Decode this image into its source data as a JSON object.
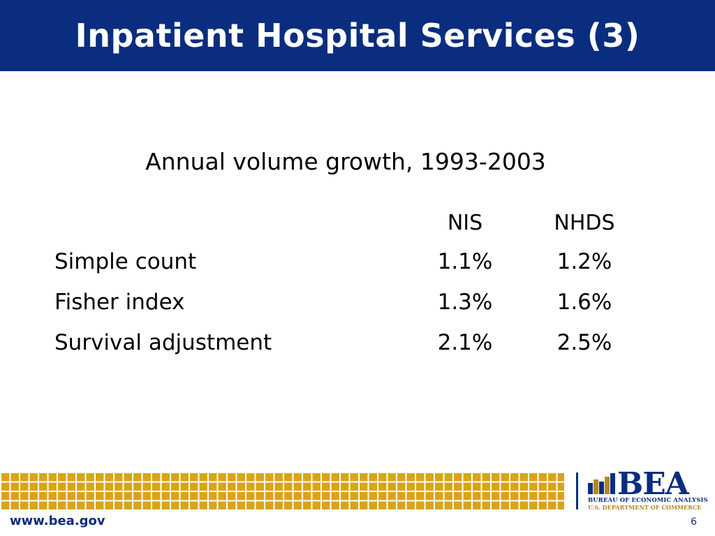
{
  "slide": {
    "title": "Inpatient Hospital Services (3)",
    "subtitle": "Annual volume growth, 1993-2003",
    "page_number": "6"
  },
  "table": {
    "columns": [
      "NIS",
      "NHDS"
    ],
    "rows": [
      {
        "label": "Simple count",
        "values": [
          "1.1%",
          "1.2%"
        ]
      },
      {
        "label": "Fisher index",
        "values": [
          "1.3%",
          "1.6%"
        ]
      },
      {
        "label": "Survival adjustment",
        "values": [
          "2.1%",
          "2.5%"
        ]
      }
    ]
  },
  "footer": {
    "url": "www.bea.gov",
    "logo_text": "BEA",
    "logo_line1": "BUREAU OF ECONOMIC ANALYSIS",
    "logo_line2": "U.S. DEPARTMENT OF COMMERCE",
    "logo_icon": "bar-chart-icon"
  },
  "colors": {
    "brand_blue": "#0a2d80",
    "gold": "#d8a51a"
  }
}
